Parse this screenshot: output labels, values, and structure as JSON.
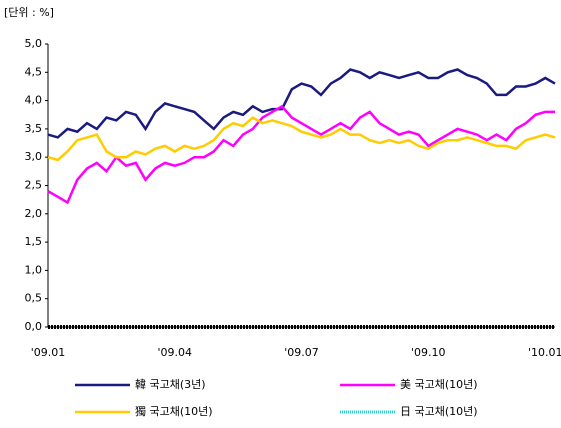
{
  "chart_data": {
    "type": "line",
    "unit_label": "[단위 : %]",
    "categories": [
      "'09.01",
      null,
      null,
      null,
      null,
      null,
      null,
      null,
      null,
      null,
      null,
      null,
      null,
      "'09.04",
      null,
      null,
      null,
      null,
      null,
      null,
      null,
      null,
      null,
      null,
      null,
      null,
      "'09.07",
      null,
      null,
      null,
      null,
      null,
      null,
      null,
      null,
      null,
      null,
      null,
      null,
      "'09.10",
      null,
      null,
      null,
      null,
      null,
      null,
      null,
      null,
      null,
      null,
      null,
      "'10.01",
      null
    ],
    "ylim": [
      0,
      5
    ],
    "yticks": [
      {
        "value": 0,
        "label": "0,0"
      },
      {
        "value": 0.5,
        "label": "0,5"
      },
      {
        "value": 1,
        "label": "1,0"
      },
      {
        "value": 1.5,
        "label": "1,5"
      },
      {
        "value": 2,
        "label": "2,0"
      },
      {
        "value": 2.5,
        "label": "2,5"
      },
      {
        "value": 3,
        "label": "3,0"
      },
      {
        "value": 3.5,
        "label": "3,5"
      },
      {
        "value": 4,
        "label": "4,0"
      },
      {
        "value": 4.5,
        "label": "4,5"
      },
      {
        "value": 5,
        "label": "5,0"
      }
    ],
    "series": [
      {
        "name": "韓 국고채(3년)",
        "color": "#1a1a80",
        "values": [
          3.4,
          3.35,
          3.5,
          3.45,
          3.6,
          3.5,
          3.7,
          3.65,
          3.8,
          3.75,
          3.5,
          3.8,
          3.95,
          3.9,
          3.85,
          3.8,
          3.65,
          3.5,
          3.7,
          3.8,
          3.75,
          3.9,
          3.8,
          3.85,
          3.85,
          4.2,
          4.3,
          4.25,
          4.1,
          4.3,
          4.4,
          4.55,
          4.5,
          4.4,
          4.5,
          4.45,
          4.4,
          4.45,
          4.5,
          4.4,
          4.4,
          4.5,
          4.55,
          4.45,
          4.4,
          4.3,
          4.1,
          4.1,
          4.25,
          4.25,
          4.3,
          4.4,
          4.3
        ]
      },
      {
        "name": "美 국고채(10년)",
        "color": "#ff00ff",
        "values": [
          2.4,
          2.3,
          2.2,
          2.6,
          2.8,
          2.9,
          2.75,
          3.0,
          2.85,
          2.9,
          2.6,
          2.8,
          2.9,
          2.85,
          2.9,
          3.0,
          3.0,
          3.1,
          3.3,
          3.2,
          3.4,
          3.5,
          3.7,
          3.8,
          3.9,
          3.7,
          3.6,
          3.5,
          3.4,
          3.5,
          3.6,
          3.5,
          3.7,
          3.8,
          3.6,
          3.5,
          3.4,
          3.45,
          3.4,
          3.2,
          3.3,
          3.4,
          3.5,
          3.45,
          3.4,
          3.3,
          3.4,
          3.3,
          3.5,
          3.6,
          3.75,
          3.8,
          3.8
        ]
      },
      {
        "name": "獨 국고채(10년)",
        "color": "#ffcc00",
        "values": [
          3.0,
          2.95,
          3.1,
          3.3,
          3.35,
          3.4,
          3.1,
          3.0,
          3.0,
          3.1,
          3.05,
          3.15,
          3.2,
          3.1,
          3.2,
          3.15,
          3.2,
          3.3,
          3.5,
          3.6,
          3.55,
          3.7,
          3.6,
          3.65,
          3.6,
          3.55,
          3.45,
          3.4,
          3.35,
          3.4,
          3.5,
          3.4,
          3.4,
          3.3,
          3.25,
          3.3,
          3.25,
          3.3,
          3.2,
          3.15,
          3.25,
          3.3,
          3.3,
          3.35,
          3.3,
          3.25,
          3.2,
          3.2,
          3.15,
          3.3,
          3.35,
          3.4,
          3.35
        ]
      },
      {
        "name": "日 국고채(10년)",
        "color": "#33cccc",
        "dashed": true,
        "values": [
          0,
          0,
          0,
          0,
          0,
          0,
          0,
          0,
          0,
          0,
          0,
          0,
          0,
          0,
          0,
          0,
          0,
          0,
          0,
          0,
          0,
          0,
          0,
          0,
          0,
          0,
          0,
          0,
          0,
          0,
          0,
          0,
          0,
          0,
          0,
          0,
          0,
          0,
          0,
          0,
          0,
          0,
          0,
          0,
          0,
          0,
          0,
          0,
          0,
          0,
          0,
          0,
          0
        ]
      }
    ]
  }
}
